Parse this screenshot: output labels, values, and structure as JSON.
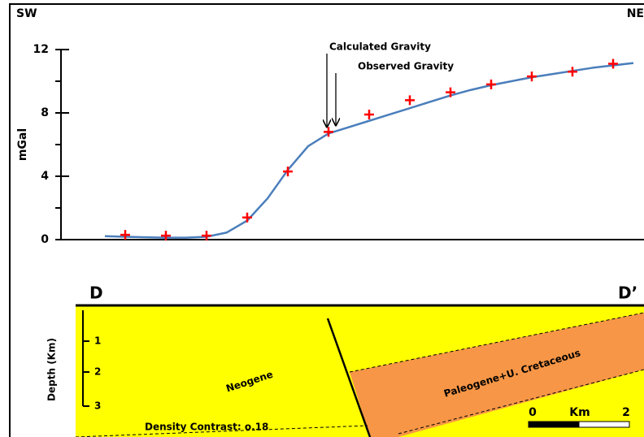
{
  "chart_data": {
    "type": "line",
    "left_label": "SW",
    "right_label": "NE",
    "ylabel": "mGal",
    "categories": [
      null,
      null,
      null,
      null,
      null,
      null,
      null,
      null,
      null,
      null,
      null,
      null,
      null,
      null,
      null,
      null,
      null,
      null,
      null,
      null,
      null,
      null,
      null,
      null,
      null,
      null,
      null
    ],
    "series": [
      {
        "name": "Calculated Gravity",
        "color": "#4a7ebb",
        "style": "line",
        "values": [
          0.22,
          0.18,
          0.15,
          0.12,
          0.12,
          0.18,
          0.45,
          1.2,
          2.6,
          4.4,
          5.9,
          6.7,
          7.1,
          7.5,
          7.9,
          8.3,
          8.7,
          9.1,
          9.45,
          9.75,
          10.0,
          10.25,
          10.45,
          10.65,
          10.85,
          11.0,
          11.15
        ],
        "arrow_index": 11
      },
      {
        "name": "Observed Gravity",
        "color": "#ff0000",
        "style": "plus",
        "values": [
          null,
          0.3,
          null,
          0.25,
          null,
          0.25,
          null,
          1.4,
          null,
          4.3,
          null,
          6.8,
          null,
          7.9,
          null,
          8.8,
          null,
          9.3,
          null,
          9.8,
          null,
          10.3,
          null,
          10.6,
          null,
          11.1,
          null
        ],
        "arrow_index": 12
      }
    ],
    "ylim": [
      0,
      12
    ],
    "yticks": [
      0,
      4,
      8,
      12
    ],
    "yminorticks": [
      2,
      6,
      10
    ]
  },
  "section": {
    "left_label": "D",
    "right_label": "D’",
    "depth_label": "Depth (Km)",
    "depth_ticks": [
      "1",
      "2",
      "3"
    ],
    "upper_unit": "Neogene",
    "lower_unit": "Paleogene+U. Cretaceous",
    "density_note": "Density Contrast: o.18",
    "scale": {
      "start": "0",
      "unit": "Km",
      "end": "2"
    }
  }
}
